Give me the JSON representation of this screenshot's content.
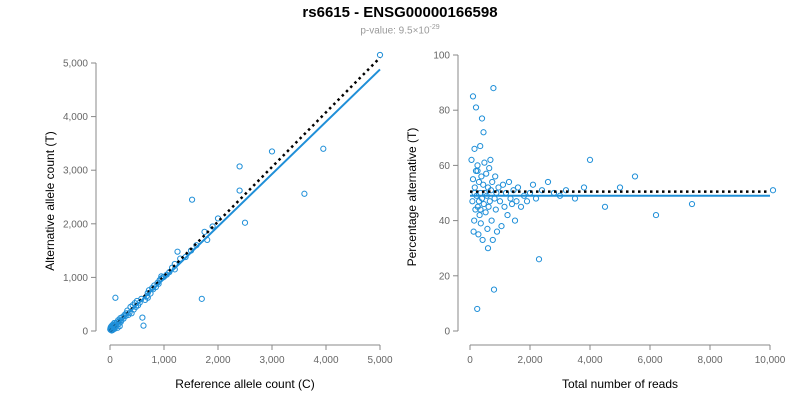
{
  "title": "rs6615 - ENSG00000166598",
  "subtitle_prefix": "p-value: 9.5×10",
  "subtitle_exponent": "-29",
  "colors": {
    "points": "#1f8fd8",
    "fit_line": "#1f8fd8",
    "reference_line": "#000000",
    "axes": "#888888",
    "tick_labels": "#666666"
  },
  "chart_data": [
    {
      "type": "scatter",
      "xlabel": "Reference allele count (C)",
      "ylabel": "Alternative allele count (T)",
      "xlim": [
        0,
        5000
      ],
      "ylim": [
        0,
        5000
      ],
      "xticks": [
        0,
        1000,
        2000,
        3000,
        4000,
        5000
      ],
      "yticks": [
        0,
        1000,
        2000,
        3000,
        4000,
        5000
      ],
      "xtick_labels": [
        "0",
        "1,000",
        "2,000",
        "3,000",
        "4,000",
        "5,000"
      ],
      "ytick_labels": [
        "0",
        "1,000",
        "2,000",
        "3,000",
        "4,000",
        "5,000"
      ],
      "grid": false,
      "fit_line": {
        "style": "solid",
        "x": [
          0,
          5000
        ],
        "y": [
          0,
          4880
        ]
      },
      "reference_line": {
        "style": "dotted",
        "x": [
          0,
          5000
        ],
        "y": [
          0,
          5100
        ]
      },
      "points": [
        [
          5,
          30
        ],
        [
          10,
          60
        ],
        [
          15,
          20
        ],
        [
          20,
          80
        ],
        [
          25,
          40
        ],
        [
          30,
          10
        ],
        [
          35,
          100
        ],
        [
          40,
          50
        ],
        [
          45,
          15
        ],
        [
          50,
          70
        ],
        [
          55,
          120
        ],
        [
          60,
          35
        ],
        [
          70,
          90
        ],
        [
          75,
          60
        ],
        [
          80,
          150
        ],
        [
          85,
          40
        ],
        [
          90,
          110
        ],
        [
          100,
          620
        ],
        [
          100,
          80
        ],
        [
          110,
          140
        ],
        [
          120,
          100
        ],
        [
          130,
          160
        ],
        [
          140,
          60
        ],
        [
          150,
          200
        ],
        [
          160,
          130
        ],
        [
          170,
          180
        ],
        [
          180,
          90
        ],
        [
          190,
          240
        ],
        [
          200,
          170
        ],
        [
          210,
          200
        ],
        [
          230,
          260
        ],
        [
          250,
          230
        ],
        [
          270,
          300
        ],
        [
          290,
          280
        ],
        [
          300,
          330
        ],
        [
          320,
          380
        ],
        [
          340,
          300
        ],
        [
          360,
          340
        ],
        [
          380,
          450
        ],
        [
          400,
          330
        ],
        [
          420,
          480
        ],
        [
          440,
          400
        ],
        [
          460,
          520
        ],
        [
          480,
          450
        ],
        [
          500,
          560
        ],
        [
          520,
          480
        ],
        [
          550,
          530
        ],
        [
          580,
          600
        ],
        [
          600,
          250
        ],
        [
          620,
          100
        ],
        [
          650,
          580
        ],
        [
          680,
          650
        ],
        [
          700,
          710
        ],
        [
          720,
          760
        ],
        [
          750,
          700
        ],
        [
          780,
          800
        ],
        [
          800,
          780
        ],
        [
          820,
          850
        ],
        [
          850,
          820
        ],
        [
          880,
          900
        ],
        [
          900,
          880
        ],
        [
          920,
          950
        ],
        [
          950,
          980
        ],
        [
          980,
          1000
        ],
        [
          1000,
          1010
        ],
        [
          1050,
          1050
        ],
        [
          1100,
          1100
        ],
        [
          1150,
          1180
        ],
        [
          1200,
          1250
        ],
        [
          1250,
          1480
        ],
        [
          1300,
          1350
        ],
        [
          1400,
          1380
        ],
        [
          1500,
          1500
        ],
        [
          1520,
          2450
        ],
        [
          1600,
          1600
        ],
        [
          1700,
          600
        ],
        [
          1750,
          1850
        ],
        [
          1800,
          1700
        ],
        [
          1900,
          1950
        ],
        [
          2000,
          2100
        ],
        [
          2400,
          2620
        ],
        [
          2400,
          3070
        ],
        [
          2500,
          2020
        ],
        [
          3600,
          2560
        ],
        [
          3950,
          3400
        ],
        [
          5000,
          5150
        ],
        [
          3000,
          3350
        ],
        [
          1200,
          1150
        ],
        [
          950,
          1020
        ],
        [
          700,
          620
        ]
      ]
    },
    {
      "type": "scatter",
      "xlabel": "Total number of reads",
      "ylabel": "Percentage alternative (T)",
      "xlim": [
        0,
        10000
      ],
      "ylim": [
        0,
        100
      ],
      "xticks": [
        0,
        2000,
        4000,
        6000,
        8000,
        10000
      ],
      "yticks": [
        0,
        20,
        40,
        60,
        80,
        100
      ],
      "xtick_labels": [
        "0",
        "2,000",
        "4,000",
        "6,000",
        "8,000",
        "10,000"
      ],
      "ytick_labels": [
        "0",
        "20",
        "40",
        "60",
        "80",
        "100"
      ],
      "grid": false,
      "fit_line": {
        "style": "solid",
        "x": [
          0,
          10000
        ],
        "y": [
          49,
          49
        ]
      },
      "reference_line": {
        "style": "dotted",
        "x": [
          0,
          10000
        ],
        "y": [
          50.5,
          50.5
        ]
      },
      "points": [
        [
          50,
          62
        ],
        [
          80,
          47
        ],
        [
          100,
          55
        ],
        [
          100,
          85
        ],
        [
          120,
          36
        ],
        [
          140,
          40
        ],
        [
          150,
          66
        ],
        [
          160,
          52
        ],
        [
          180,
          44
        ],
        [
          200,
          58
        ],
        [
          200,
          81
        ],
        [
          220,
          49
        ],
        [
          240,
          8
        ],
        [
          250,
          60
        ],
        [
          260,
          45
        ],
        [
          280,
          35
        ],
        [
          300,
          54
        ],
        [
          300,
          47
        ],
        [
          320,
          42
        ],
        [
          340,
          67
        ],
        [
          350,
          50
        ],
        [
          360,
          39
        ],
        [
          380,
          56
        ],
        [
          400,
          48
        ],
        [
          400,
          77
        ],
        [
          420,
          33
        ],
        [
          440,
          53
        ],
        [
          460,
          46
        ],
        [
          480,
          61
        ],
        [
          500,
          50
        ],
        [
          520,
          43
        ],
        [
          540,
          57
        ],
        [
          560,
          49
        ],
        [
          580,
          37
        ],
        [
          600,
          52
        ],
        [
          620,
          45
        ],
        [
          640,
          59
        ],
        [
          660,
          47
        ],
        [
          680,
          62
        ],
        [
          700,
          51
        ],
        [
          720,
          40
        ],
        [
          740,
          54
        ],
        [
          760,
          33
        ],
        [
          780,
          88
        ],
        [
          800,
          15
        ],
        [
          820,
          48
        ],
        [
          840,
          56
        ],
        [
          860,
          44
        ],
        [
          880,
          50
        ],
        [
          900,
          36
        ],
        [
          950,
          52
        ],
        [
          1000,
          47
        ],
        [
          1050,
          38
        ],
        [
          1100,
          53
        ],
        [
          1150,
          45
        ],
        [
          1200,
          50
        ],
        [
          1250,
          42
        ],
        [
          1300,
          54
        ],
        [
          1350,
          48
        ],
        [
          1400,
          46
        ],
        [
          1450,
          51
        ],
        [
          1500,
          40
        ],
        [
          1550,
          47
        ],
        [
          1600,
          52
        ],
        [
          1700,
          45
        ],
        [
          1800,
          49
        ],
        [
          1900,
          47
        ],
        [
          2000,
          50
        ],
        [
          2100,
          53
        ],
        [
          2200,
          48
        ],
        [
          2300,
          26
        ],
        [
          2400,
          51
        ],
        [
          2600,
          54
        ],
        [
          2800,
          50
        ],
        [
          3000,
          49
        ],
        [
          3200,
          51
        ],
        [
          3500,
          48
        ],
        [
          3800,
          52
        ],
        [
          4000,
          62
        ],
        [
          4500,
          45
        ],
        [
          5000,
          52
        ],
        [
          5500,
          56
        ],
        [
          6200,
          42
        ],
        [
          7400,
          46
        ],
        [
          10100,
          51
        ],
        [
          600,
          30
        ],
        [
          450,
          72
        ],
        [
          250,
          58
        ],
        [
          150,
          50
        ],
        [
          350,
          44
        ]
      ]
    }
  ]
}
